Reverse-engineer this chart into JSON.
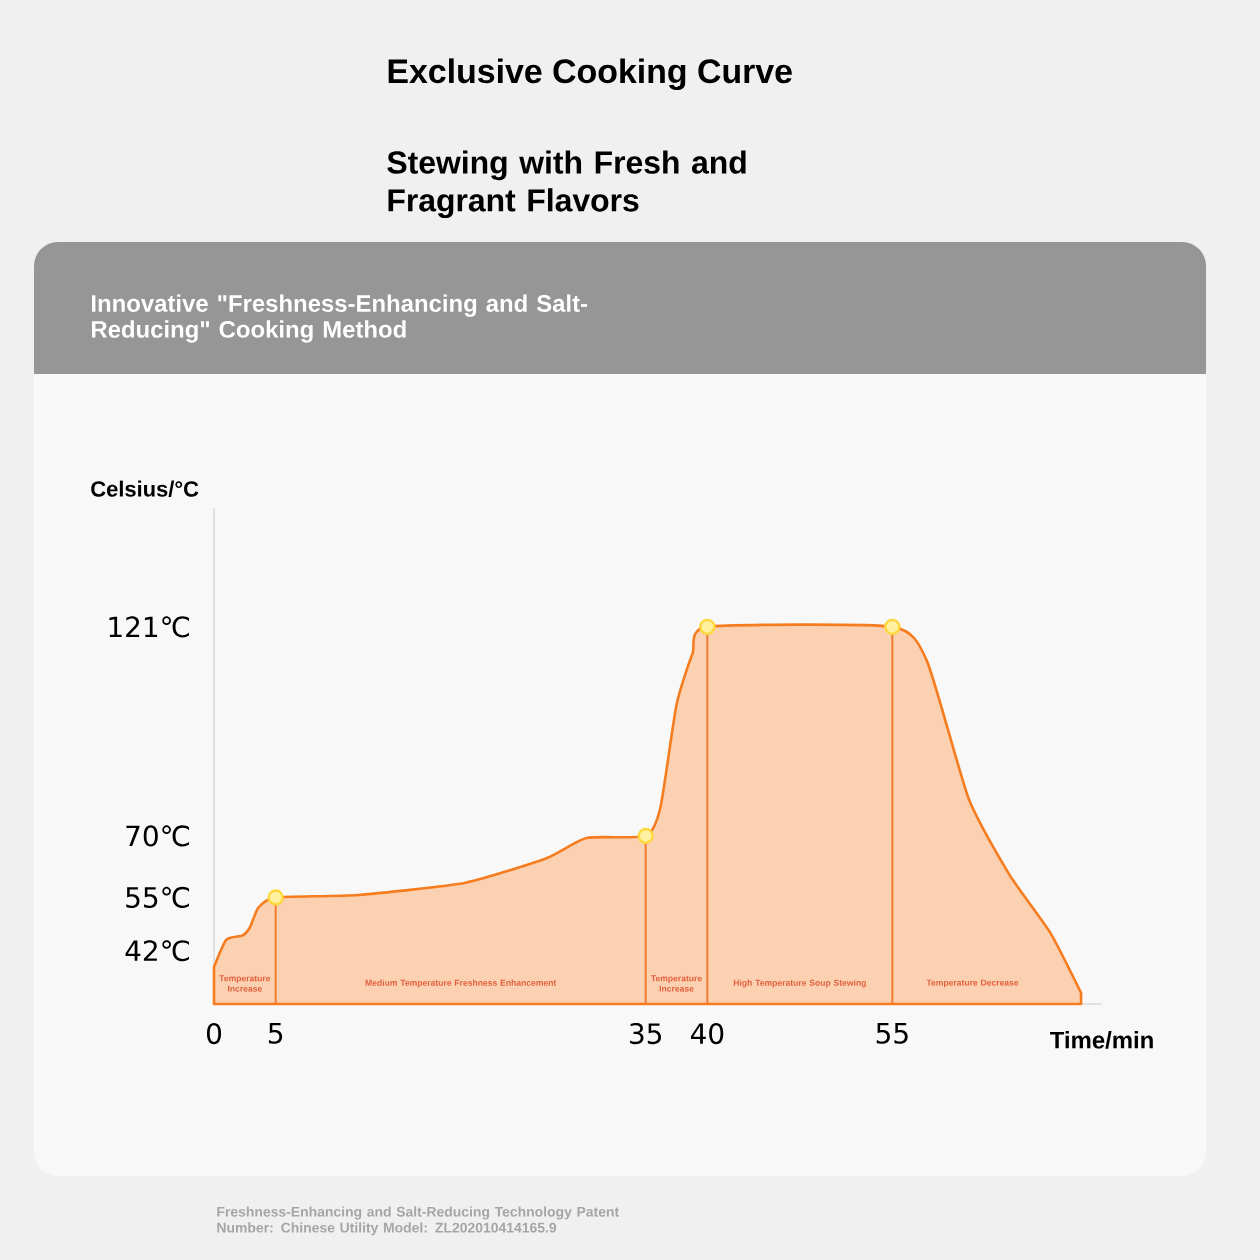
{
  "chart_data": {
    "type": "area",
    "title": "Exclusive Cooking Curve",
    "subtitle": "Stewing with Fresh and Fragrant Flavors",
    "xlabel": "Time/min",
    "ylabel": "Celsius/°C",
    "annotations": [
      "Innovative \"Freshness-Enhancing and Salt-Reducing\" Cooking Method",
      "Temperature Increase",
      "Medium Temperature Freshness Enhancement",
      "Temperature Increase",
      "High Temperature Soup Stewing",
      "Temperature Decrease",
      "Freshness-Enhancing and Salt-Reducing Technology Patent Number: Chinese Utility Model: ZL202010414165.9"
    ],
    "xlim": [
      0,
      72
    ],
    "ylim": [
      29,
      150
    ],
    "xticks": [
      0,
      5,
      35,
      40,
      55
    ],
    "yticks": [
      {
        "value": 42,
        "label": "42℃"
      },
      {
        "value": 55,
        "label": "55℃"
      },
      {
        "value": 70,
        "label": "70℃"
      },
      {
        "value": 121,
        "label": "121℃"
      }
    ],
    "ref_lines": [
      {
        "axis": "x",
        "value": 5,
        "color": "#f07a30"
      },
      {
        "axis": "x",
        "value": 35,
        "color": "#f07a30"
      },
      {
        "axis": "x",
        "value": 40,
        "color": "#f07a30"
      },
      {
        "axis": "x",
        "value": 55,
        "color": "#f07a30"
      }
    ],
    "series": [
      {
        "color": "#f57c1f",
        "x": [
          0,
          1,
          2.3,
          2.9,
          3.6,
          5,
          11.7,
          20.4,
          26.9,
          30.2,
          35,
          36.2,
          37.5,
          38.8,
          40,
          55,
          57.8,
          61.2,
          64.5,
          67.8,
          70.3
        ],
        "values": [
          38,
          44.7,
          45.7,
          47.6,
          52.5,
          55,
          55.6,
          58.6,
          64.5,
          69.5,
          70,
          77,
          102,
          114.5,
          121,
          121,
          112.7,
          79,
          60.5,
          46.4,
          31.7
        ]
      },
      {
        "type": "scatter",
        "color": "#fff1a0",
        "marker": "circle",
        "x": [
          5,
          35,
          40,
          55
        ],
        "values": [
          55,
          70,
          121,
          121
        ]
      }
    ]
  }
}
